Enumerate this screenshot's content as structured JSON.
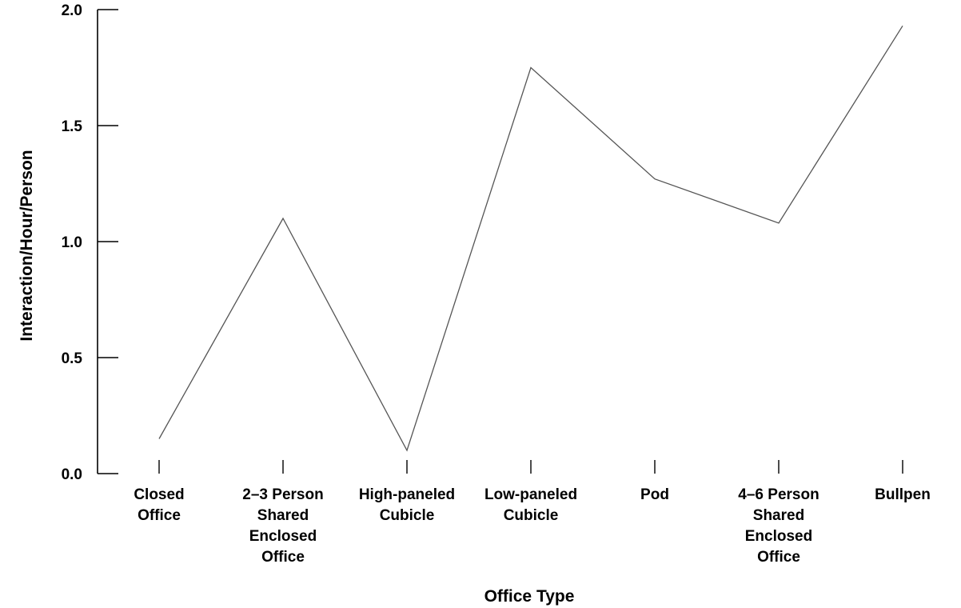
{
  "chart_data": {
    "type": "line",
    "title": "",
    "xlabel": "Office Type",
    "ylabel": "Interaction/Hour/Person",
    "categories": [
      [
        "Closed",
        "Office"
      ],
      [
        "2–3 Person",
        "Shared",
        "Enclosed",
        "Office"
      ],
      [
        "High-paneled",
        "Cubicle"
      ],
      [
        "Low-paneled",
        "Cubicle"
      ],
      [
        "Pod"
      ],
      [
        "4–6 Person",
        "Shared",
        "Enclosed",
        "Office"
      ],
      [
        "Bullpen"
      ]
    ],
    "series": [
      {
        "values": [
          0.15,
          1.1,
          0.1,
          1.75,
          1.27,
          1.08,
          1.93
        ],
        "color": "#555555"
      }
    ],
    "ylim": [
      0,
      2.0
    ],
    "yticks": [
      "0.0",
      "0.5",
      "1.0",
      "1.5",
      "2.0"
    ],
    "grid": false,
    "legend": "none"
  }
}
